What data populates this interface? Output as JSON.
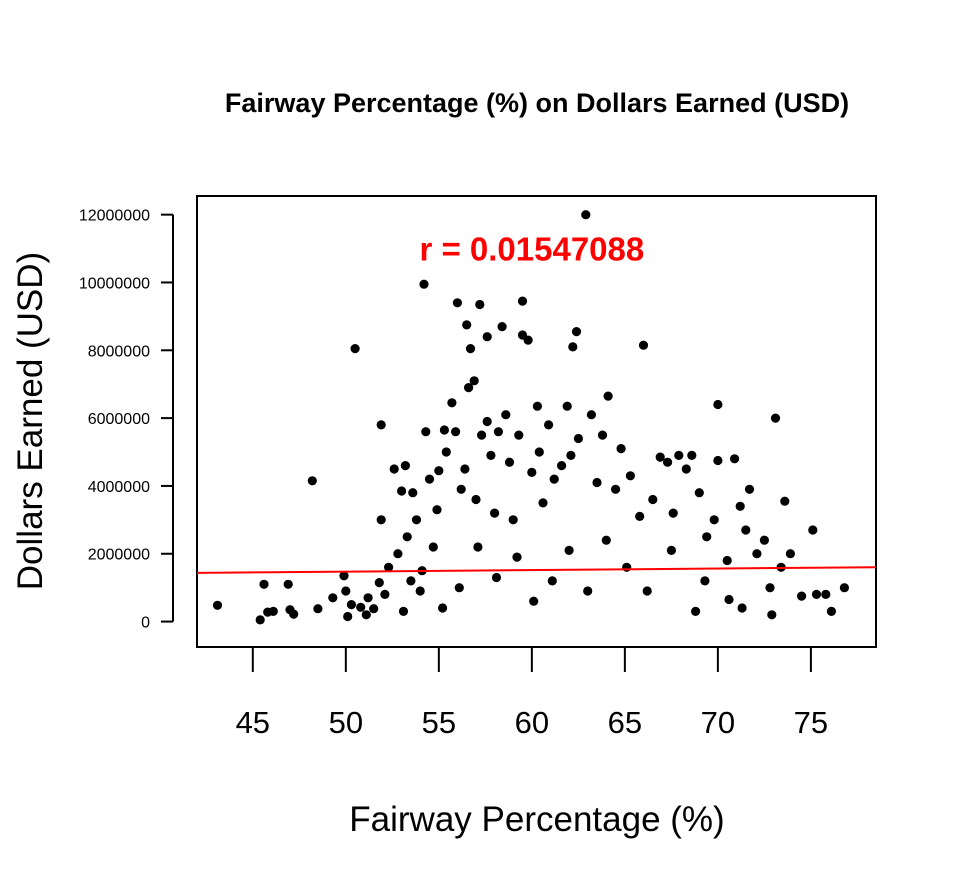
{
  "chart_data": {
    "type": "scatter",
    "title": "Fairway Percentage (%) on Dollars Earned (USD)",
    "xlabel": "Fairway Percentage (%)",
    "ylabel": "Dollars Earned (USD)",
    "xlim": [
      42,
      78.5
    ],
    "ylim": [
      -750000,
      12550000
    ],
    "x_ticks": [
      45,
      50,
      55,
      60,
      65,
      70,
      75
    ],
    "x_tick_labels": [
      "45",
      "50",
      "55",
      "60",
      "65",
      "70",
      "75"
    ],
    "y_ticks": [
      0,
      2000000,
      4000000,
      6000000,
      8000000,
      10000000,
      12000000
    ],
    "y_tick_labels": [
      "0",
      "2000000",
      "4000000",
      "6000000",
      "8000000",
      "10000000",
      "12000000"
    ],
    "grid": false,
    "annotation": {
      "text": "r = 0.01547088",
      "color": "#ff0000",
      "x": 60,
      "y": 11000000
    },
    "trend_line": {
      "color": "#ff0000",
      "intercept": 1245000,
      "slope": 4550
    },
    "point_color": "#000000",
    "points": [
      [
        43.1,
        480000
      ],
      [
        45.4,
        50000
      ],
      [
        45.6,
        1100000
      ],
      [
        45.8,
        280000
      ],
      [
        46.1,
        300000
      ],
      [
        46.9,
        1100000
      ],
      [
        47.0,
        350000
      ],
      [
        47.2,
        220000
      ],
      [
        48.2,
        4150000
      ],
      [
        48.5,
        380000
      ],
      [
        49.3,
        700000
      ],
      [
        49.9,
        1350000
      ],
      [
        50.0,
        900000
      ],
      [
        50.1,
        150000
      ],
      [
        50.3,
        500000
      ],
      [
        50.5,
        8050000
      ],
      [
        50.8,
        420000
      ],
      [
        51.2,
        700000
      ],
      [
        51.5,
        380000
      ],
      [
        51.8,
        1150000
      ],
      [
        51.9,
        5800000
      ],
      [
        51.9,
        3000000
      ],
      [
        52.3,
        1600000
      ],
      [
        52.6,
        4500000
      ],
      [
        52.8,
        2000000
      ],
      [
        53.0,
        3850000
      ],
      [
        53.2,
        4600000
      ],
      [
        53.3,
        2500000
      ],
      [
        53.5,
        1200000
      ],
      [
        53.6,
        3800000
      ],
      [
        53.8,
        3000000
      ],
      [
        54.1,
        1500000
      ],
      [
        54.2,
        9950000
      ],
      [
        54.3,
        5600000
      ],
      [
        54.5,
        4200000
      ],
      [
        54.7,
        2200000
      ],
      [
        54.9,
        3300000
      ],
      [
        55.0,
        4450000
      ],
      [
        55.3,
        5650000
      ],
      [
        55.4,
        5000000
      ],
      [
        55.7,
        6450000
      ],
      [
        55.9,
        5600000
      ],
      [
        56.0,
        9400000
      ],
      [
        56.2,
        3900000
      ],
      [
        56.4,
        4500000
      ],
      [
        56.5,
        8750000
      ],
      [
        56.6,
        6900000
      ],
      [
        56.7,
        8050000
      ],
      [
        56.9,
        7100000
      ],
      [
        57.0,
        3600000
      ],
      [
        57.2,
        9350000
      ],
      [
        57.3,
        5500000
      ],
      [
        57.6,
        8400000
      ],
      [
        57.6,
        5900000
      ],
      [
        57.8,
        4900000
      ],
      [
        58.0,
        3200000
      ],
      [
        58.2,
        5600000
      ],
      [
        58.4,
        8700000
      ],
      [
        58.6,
        6100000
      ],
      [
        58.8,
        4700000
      ],
      [
        59.0,
        3000000
      ],
      [
        59.3,
        5500000
      ],
      [
        59.5,
        9450000
      ],
      [
        59.5,
        8450000
      ],
      [
        59.8,
        8300000
      ],
      [
        60.0,
        4400000
      ],
      [
        60.3,
        6350000
      ],
      [
        60.4,
        5000000
      ],
      [
        60.6,
        3500000
      ],
      [
        60.9,
        5800000
      ],
      [
        61.2,
        4200000
      ],
      [
        61.6,
        4600000
      ],
      [
        61.9,
        6350000
      ],
      [
        62.1,
        4900000
      ],
      [
        62.2,
        8100000
      ],
      [
        62.4,
        8550000
      ],
      [
        62.5,
        5400000
      ],
      [
        62.9,
        12000000
      ],
      [
        63.2,
        6100000
      ],
      [
        63.5,
        4100000
      ],
      [
        63.8,
        5500000
      ],
      [
        64.1,
        6650000
      ],
      [
        64.5,
        3900000
      ],
      [
        64.8,
        5100000
      ],
      [
        65.3,
        4300000
      ],
      [
        65.8,
        3100000
      ],
      [
        66.0,
        8150000
      ],
      [
        66.5,
        3600000
      ],
      [
        66.9,
        4850000
      ],
      [
        67.3,
        4700000
      ],
      [
        67.6,
        3200000
      ],
      [
        67.9,
        4900000
      ],
      [
        68.3,
        4500000
      ],
      [
        68.6,
        4900000
      ],
      [
        69.0,
        3800000
      ],
      [
        69.4,
        2500000
      ],
      [
        69.8,
        3000000
      ],
      [
        70.0,
        6400000
      ],
      [
        70.0,
        4750000
      ],
      [
        70.5,
        1800000
      ],
      [
        70.9,
        4800000
      ],
      [
        71.2,
        3400000
      ],
      [
        71.5,
        2700000
      ],
      [
        71.7,
        3900000
      ],
      [
        72.1,
        2000000
      ],
      [
        72.5,
        2400000
      ],
      [
        72.8,
        1000000
      ],
      [
        73.1,
        6000000
      ],
      [
        73.4,
        1600000
      ],
      [
        73.6,
        3550000
      ],
      [
        73.9,
        2000000
      ],
      [
        74.5,
        750000
      ],
      [
        75.1,
        2700000
      ],
      [
        75.3,
        800000
      ],
      [
        75.8,
        800000
      ],
      [
        76.1,
        300000
      ],
      [
        76.8,
        1000000
      ],
      [
        71.3,
        400000
      ],
      [
        72.9,
        200000
      ],
      [
        70.6,
        650000
      ],
      [
        69.3,
        1200000
      ],
      [
        68.8,
        300000
      ],
      [
        67.5,
        2100000
      ],
      [
        66.2,
        900000
      ],
      [
        65.1,
        1600000
      ],
      [
        64.0,
        2400000
      ],
      [
        63.0,
        900000
      ],
      [
        62.0,
        2100000
      ],
      [
        61.1,
        1200000
      ],
      [
        60.1,
        600000
      ],
      [
        59.2,
        1900000
      ],
      [
        58.1,
        1300000
      ],
      [
        57.1,
        2200000
      ],
      [
        56.1,
        1000000
      ],
      [
        55.2,
        400000
      ],
      [
        54.0,
        900000
      ],
      [
        53.1,
        300000
      ],
      [
        52.1,
        800000
      ],
      [
        51.1,
        200000
      ]
    ]
  }
}
